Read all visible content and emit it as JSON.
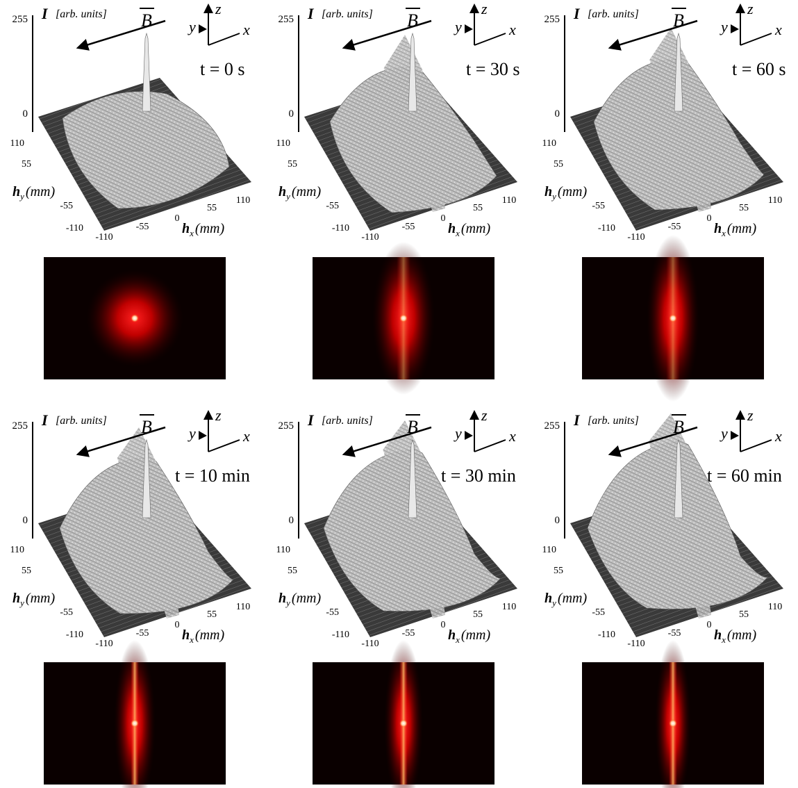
{
  "axes": {
    "z_label": "I",
    "z_unit": "[arb. units]",
    "field": "B",
    "x": "x",
    "y": "y",
    "z": "z",
    "h": "h",
    "unit": "(mm)"
  },
  "z_ticks": [
    255,
    0
  ],
  "hy_ticks": [
    110,
    55,
    -55,
    -110
  ],
  "hx_ticks": [
    -110,
    -55,
    0,
    55,
    110
  ],
  "panels": [
    {
      "time": "t = 0 s"
    },
    {
      "time": "t = 30 s"
    },
    {
      "time": "t = 60 s"
    },
    {
      "time": "t = 10 min"
    },
    {
      "time": "t = 30 min"
    },
    {
      "time": "t = 60 min"
    }
  ]
}
